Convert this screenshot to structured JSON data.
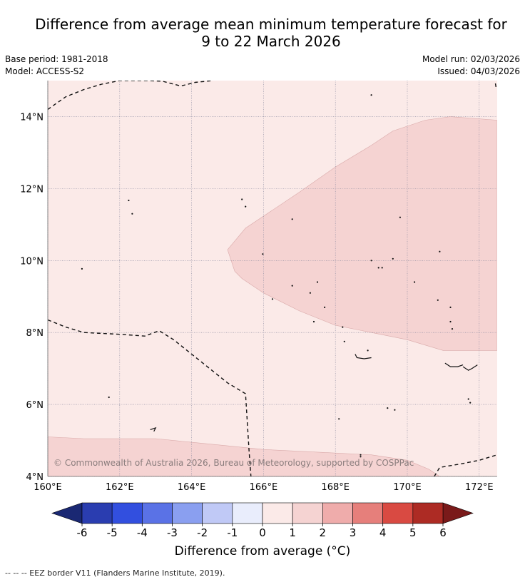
{
  "title": {
    "line1": "Difference from average mean minimum temperature forecast for",
    "line2": "9 to 22 March 2026"
  },
  "meta": {
    "base_period": "Base period: 1981-2018",
    "model": "Model: ACCESS-S2",
    "model_run": "Model run: 02/03/2026",
    "issued": "Issued: 04/03/2026"
  },
  "map": {
    "lon_range": [
      160,
      172.5
    ],
    "lat_range": [
      4,
      15
    ],
    "lon_ticks": [
      {
        "value": 160,
        "label": "160°E"
      },
      {
        "value": 162,
        "label": "162°E"
      },
      {
        "value": 164,
        "label": "164°E"
      },
      {
        "value": 166,
        "label": "166°E"
      },
      {
        "value": 168,
        "label": "168°E"
      },
      {
        "value": 170,
        "label": "170°E"
      },
      {
        "value": 172,
        "label": "172°E"
      }
    ],
    "lat_ticks": [
      {
        "value": 4,
        "label": "4°N"
      },
      {
        "value": 6,
        "label": "6°N"
      },
      {
        "value": 8,
        "label": "8°N"
      },
      {
        "value": 10,
        "label": "10°N"
      },
      {
        "value": 12,
        "label": "12°N"
      },
      {
        "value": 14,
        "label": "14°N"
      }
    ],
    "background_anomaly_class": "0 to 1",
    "regions": [
      {
        "name": "warm-anomaly-east",
        "class": "1 to 2",
        "points": [
          [
            165.0,
            10.3
          ],
          [
            165.5,
            10.9
          ],
          [
            167.0,
            11.9
          ],
          [
            168.0,
            12.6
          ],
          [
            169.0,
            13.2
          ],
          [
            169.6,
            13.6
          ],
          [
            170.5,
            13.9
          ],
          [
            171.2,
            14.0
          ],
          [
            172.5,
            13.9
          ],
          [
            172.5,
            7.5
          ],
          [
            171.0,
            7.5
          ],
          [
            170.0,
            7.8
          ],
          [
            169.0,
            8.0
          ],
          [
            168.0,
            8.2
          ],
          [
            167.0,
            8.6
          ],
          [
            166.0,
            9.1
          ],
          [
            165.4,
            9.5
          ],
          [
            165.2,
            9.7
          ]
        ]
      },
      {
        "name": "warm-anomaly-south",
        "class": "1 to 2",
        "points": [
          [
            160.0,
            5.1
          ],
          [
            161.0,
            5.05
          ],
          [
            162.0,
            5.05
          ],
          [
            163.0,
            5.05
          ],
          [
            164.0,
            4.95
          ],
          [
            165.0,
            4.85
          ],
          [
            166.0,
            4.75
          ],
          [
            167.0,
            4.7
          ],
          [
            168.0,
            4.65
          ],
          [
            169.0,
            4.6
          ],
          [
            170.0,
            4.45
          ],
          [
            170.6,
            4.2
          ],
          [
            170.9,
            4.0
          ],
          [
            160.0,
            4.0
          ]
        ]
      }
    ],
    "eez_borders": [
      [
        [
          160.0,
          14.2
        ],
        [
          160.5,
          14.55
        ],
        [
          161.0,
          14.75
        ],
        [
          161.5,
          14.9
        ],
        [
          162.0,
          15.0
        ],
        [
          162.8,
          15.0
        ],
        [
          163.2,
          14.98
        ],
        [
          163.7,
          14.85
        ],
        [
          164.1,
          14.95
        ],
        [
          164.6,
          15.0
        ]
      ],
      [
        [
          160.0,
          8.35
        ],
        [
          160.5,
          8.15
        ],
        [
          161.0,
          8.0
        ],
        [
          162.0,
          7.95
        ],
        [
          162.7,
          7.9
        ],
        [
          163.1,
          8.05
        ],
        [
          163.5,
          7.8
        ],
        [
          164.0,
          7.4
        ],
        [
          164.5,
          7.0
        ],
        [
          165.0,
          6.6
        ],
        [
          165.5,
          6.3
        ],
        [
          165.55,
          5.5
        ],
        [
          165.6,
          4.7
        ],
        [
          165.65,
          4.0
        ]
      ],
      [
        [
          170.75,
          4.0
        ],
        [
          170.9,
          4.25
        ],
        [
          171.5,
          4.35
        ],
        [
          172.0,
          4.45
        ],
        [
          172.5,
          4.6
        ]
      ],
      [
        [
          172.45,
          14.92
        ],
        [
          172.47,
          14.8
        ]
      ]
    ],
    "islands": [
      [
        169.0,
        14.6
      ],
      [
        162.25,
        11.67
      ],
      [
        162.35,
        11.3
      ],
      [
        165.4,
        11.7
      ],
      [
        165.5,
        11.5
      ],
      [
        166.8,
        11.15
      ],
      [
        169.8,
        11.2
      ],
      [
        160.95,
        9.77
      ],
      [
        165.98,
        10.18
      ],
      [
        169.0,
        10.0
      ],
      [
        169.6,
        10.05
      ],
      [
        169.2,
        9.8
      ],
      [
        169.3,
        9.8
      ],
      [
        170.2,
        9.4
      ],
      [
        170.9,
        10.25
      ],
      [
        166.8,
        9.3
      ],
      [
        167.5,
        9.4
      ],
      [
        167.3,
        9.1
      ],
      [
        166.25,
        8.93
      ],
      [
        167.7,
        8.7
      ],
      [
        170.85,
        8.9
      ],
      [
        171.2,
        8.7
      ],
      [
        171.2,
        8.3
      ],
      [
        171.25,
        8.1
      ],
      [
        167.4,
        8.3
      ],
      [
        168.2,
        8.15
      ],
      [
        168.25,
        7.75
      ],
      [
        168.9,
        7.5
      ],
      [
        161.7,
        6.2
      ],
      [
        169.45,
        5.9
      ],
      [
        169.65,
        5.85
      ],
      [
        171.7,
        6.15
      ],
      [
        171.75,
        6.05
      ],
      [
        168.1,
        5.6
      ],
      [
        168.7,
        4.6
      ],
      [
        168.7,
        4.55
      ]
    ],
    "atolls": [
      [
        [
          168.55,
          7.4
        ],
        [
          168.6,
          7.3
        ],
        [
          168.8,
          7.27
        ],
        [
          169.0,
          7.3
        ]
      ],
      [
        [
          171.05,
          7.15
        ],
        [
          171.2,
          7.05
        ],
        [
          171.4,
          7.05
        ],
        [
          171.55,
          7.1
        ]
      ],
      [
        [
          171.55,
          7.05
        ],
        [
          171.7,
          6.95
        ],
        [
          171.8,
          7.0
        ],
        [
          171.95,
          7.1
        ]
      ],
      [
        [
          162.85,
          5.3
        ],
        [
          163.0,
          5.35
        ],
        [
          162.95,
          5.25
        ]
      ]
    ],
    "eez_label_top_left": "",
    "watermark": "© Commonwealth of Australia 2026, Bureau of Meteorology, supported by COSPPac"
  },
  "colorbar": {
    "title": "Difference from average (°C)",
    "ticks": [
      "-6",
      "-5",
      "-4",
      "-3",
      "-2",
      "-1",
      "0",
      "1",
      "2",
      "3",
      "4",
      "5",
      "6"
    ],
    "under_color": "#1a2873",
    "over_color": "#7a1a1a",
    "colors": [
      "#2a3db0",
      "#324fdf",
      "#5a72e6",
      "#8a9ff0",
      "#c0c9f6",
      "#e9edfc",
      "#fbeae8",
      "#f5d3d2",
      "#efacab",
      "#e67f7b",
      "#d94a42",
      "#ad2b24"
    ]
  },
  "legend_colors": {
    "0 to 1": "#fbeae8",
    "1 to 2": "#f5d3d2"
  },
  "footnote": "-- -- -- EEZ border V11 (Flanders Marine Institute, 2019)."
}
